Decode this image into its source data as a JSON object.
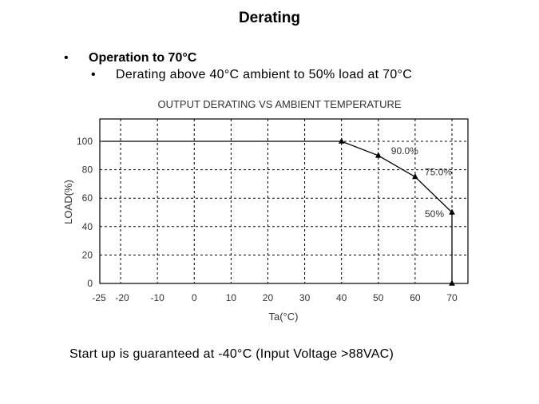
{
  "slide": {
    "title": "Derating",
    "bullets": [
      {
        "marker": "•",
        "text": "Operation to 70°C"
      },
      {
        "marker": "•",
        "text": "Derating above 40°C ambient to 50% load at 70°C"
      }
    ],
    "footer": "Start up is guaranteed at -40°C (Input Voltage >88VAC)"
  },
  "chart_data": {
    "type": "line",
    "title": "OUTPUT DERATING VS AMBIENT TEMPERATURE",
    "xlabel": "Ta(°C)",
    "ylabel": "LOAD(%)",
    "xlim": [
      -25,
      70
    ],
    "ylim": [
      0,
      100
    ],
    "grid": true,
    "x_ticks": [
      -25,
      -20,
      -10,
      0,
      10,
      20,
      30,
      40,
      50,
      60,
      70
    ],
    "x_tick_labels": [
      "-25",
      "-20",
      "-10",
      "0",
      "10",
      "20",
      "30",
      "40",
      "50",
      "60",
      "70"
    ],
    "y_ticks": [
      0,
      20,
      40,
      60,
      80,
      100
    ],
    "series": [
      {
        "x": [
          -25,
          40,
          50,
          60,
          70,
          70
        ],
        "y": [
          100,
          100,
          90,
          75,
          50,
          0
        ],
        "markers": [
          false,
          true,
          true,
          true,
          true,
          true
        ]
      }
    ],
    "annotations": [
      {
        "text": "90.0%",
        "x": 50,
        "y": 90
      },
      {
        "text": "75.0%",
        "x": 60,
        "y": 75
      },
      {
        "text": "50%",
        "x": 70,
        "y": 50
      }
    ],
    "colors": {
      "line": "#000000",
      "grid": "#000000",
      "text": "#333333"
    }
  }
}
